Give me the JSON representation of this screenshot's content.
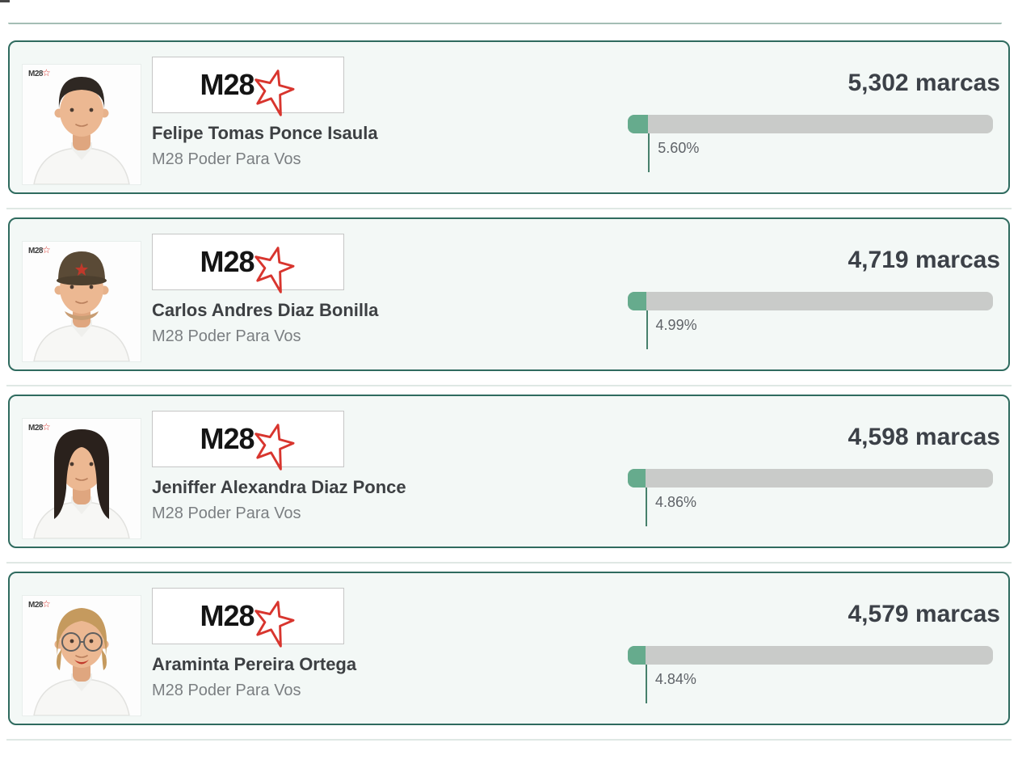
{
  "page": {
    "background": "#ffffff"
  },
  "labels": {
    "votes_unit": "marcas"
  },
  "party": {
    "logo_text": "M28",
    "name": "M28 Poder Para Vos",
    "star_color": "#d8352e"
  },
  "colors": {
    "card_border": "#2f6b5f",
    "card_background": "#f3f8f6",
    "bar_background": "#c9cbc9",
    "bar_fill": "#66ab8d",
    "marker_line": "#47806c",
    "votes_text": "#3c4148",
    "name_text": "#3d4043",
    "party_text": "#7b7f82",
    "percent_text": "#5f6368",
    "divider": "#dfe8e4"
  },
  "candidates": [
    {
      "name": "Felipe Tomas Ponce Isaula",
      "party": "M28 Poder Para Vos",
      "votes": "5,302",
      "percent": "5.60%",
      "percent_value": 5.6,
      "photo_variant": "man-short-dark-hair"
    },
    {
      "name": "Carlos Andres Diaz Bonilla",
      "party": "M28 Poder Para Vos",
      "votes": "4,719",
      "percent": "4.99%",
      "percent_value": 4.99,
      "photo_variant": "man-cap"
    },
    {
      "name": "Jeniffer Alexandra Diaz Ponce",
      "party": "M28 Poder Para Vos",
      "votes": "4,598",
      "percent": "4.86%",
      "percent_value": 4.86,
      "photo_variant": "woman-long-dark-hair"
    },
    {
      "name": "Araminta Pereira Ortega",
      "party": "M28 Poder Para Vos",
      "votes": "4,579",
      "percent": "4.84%",
      "percent_value": 4.84,
      "photo_variant": "woman-glasses"
    }
  ]
}
